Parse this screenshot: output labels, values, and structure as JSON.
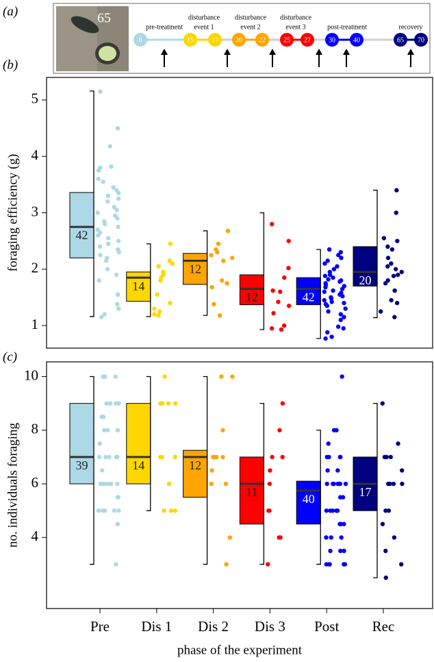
{
  "panel_labels": [
    "(a)",
    "(b)",
    "(c)"
  ],
  "timeline": {
    "photo_counter": "65",
    "nodes": [
      {
        "label": "0",
        "color": "#add8e6"
      },
      {
        "label": "15",
        "color": "#ffd700"
      },
      {
        "label": "17",
        "color": "#ffd700"
      },
      {
        "label": "20",
        "color": "#ffa500"
      },
      {
        "label": "22",
        "color": "#ffa500"
      },
      {
        "label": "25",
        "color": "#ff0000"
      },
      {
        "label": "27",
        "color": "#ff0000"
      },
      {
        "label": "30",
        "color": "#0000ff"
      },
      {
        "label": "40",
        "color": "#0000ff"
      },
      {
        "label": "65",
        "color": "#000080"
      },
      {
        "label": "70",
        "color": "#000080"
      }
    ],
    "phases": [
      {
        "lines": [
          "pre-treatment"
        ]
      },
      {
        "lines": [
          "disturbance",
          "event 1"
        ]
      },
      {
        "lines": [
          "disturbance",
          "event 2"
        ]
      },
      {
        "lines": [
          "disturbance",
          "event 3"
        ]
      },
      {
        "lines": [
          "post-treatment"
        ]
      },
      {
        "lines": [
          "recovery"
        ]
      }
    ]
  },
  "chart_data": [
    {
      "type": "box",
      "ylabel": "foraging efficiency (g)",
      "ylim": [
        0.6,
        5.4
      ],
      "yticks": [
        1,
        2,
        3,
        4,
        5
      ],
      "boxes": [
        {
          "color": "#add8e6",
          "label_color": "#222",
          "q1": 2.2,
          "median": 2.75,
          "q3": 3.36,
          "whisker_low": 1.16,
          "whisker_high": 5.16,
          "n": 42,
          "points": [
            5.15,
            4.5,
            4.18,
            3.82,
            3.8,
            3.75,
            3.6,
            3.55,
            3.45,
            3.4,
            3.3,
            3.25,
            3.2,
            3.1,
            3.05,
            3.0,
            2.95,
            2.85,
            2.8,
            2.75,
            2.7,
            2.65,
            2.6,
            2.55,
            2.5,
            2.45,
            2.4,
            2.3,
            2.25,
            2.2,
            2.15,
            2.0,
            1.9,
            1.8,
            1.55,
            1.38,
            1.3,
            1.2,
            1.15,
            2.9,
            3.35,
            2.35
          ]
        },
        {
          "color": "#ffd700",
          "label_color": "#222",
          "q1": 1.43,
          "median": 1.85,
          "q3": 1.95,
          "whisker_low": 1.16,
          "whisker_high": 2.45,
          "n": 14,
          "points": [
            2.45,
            2.15,
            2.1,
            2.05,
            1.95,
            1.9,
            1.85,
            1.8,
            1.55,
            1.4,
            1.3,
            1.25,
            1.2,
            1.18
          ]
        },
        {
          "color": "#ffa500",
          "label_color": "#222",
          "q1": 1.73,
          "median": 2.15,
          "q3": 2.28,
          "whisker_low": 1.18,
          "whisker_high": 2.68,
          "n": 12,
          "points": [
            2.68,
            2.45,
            2.35,
            2.3,
            2.25,
            2.2,
            2.15,
            1.8,
            1.75,
            1.68,
            1.38,
            1.18
          ]
        },
        {
          "color": "#ff0000",
          "label_color": "#222",
          "q1": 1.37,
          "median": 1.65,
          "q3": 1.9,
          "whisker_low": 0.93,
          "whisker_high": 3.0,
          "n": 12,
          "points": [
            2.8,
            2.5,
            2.02,
            1.85,
            1.62,
            1.6,
            1.42,
            1.35,
            1.22,
            1.0,
            0.95,
            0.93
          ]
        },
        {
          "color": "#0000ff",
          "label_color": "#fff",
          "q1": 1.37,
          "median": 1.65,
          "q3": 1.85,
          "whisker_low": 0.77,
          "whisker_high": 2.35,
          "n": 42,
          "points": [
            2.35,
            2.3,
            2.25,
            2.2,
            2.15,
            2.1,
            2.05,
            2.0,
            1.95,
            1.9,
            1.88,
            1.85,
            1.82,
            1.8,
            1.78,
            1.75,
            1.72,
            1.7,
            1.68,
            1.65,
            1.62,
            1.6,
            1.58,
            1.55,
            1.52,
            1.5,
            1.48,
            1.45,
            1.42,
            1.4,
            1.38,
            1.35,
            1.3,
            1.25,
            1.2,
            1.15,
            1.1,
            0.98,
            0.95,
            0.88,
            0.8,
            0.77
          ]
        },
        {
          "color": "#000080",
          "label_color": "#fff",
          "q1": 1.7,
          "median": 1.95,
          "q3": 2.4,
          "whisker_low": 1.14,
          "whisker_high": 3.4,
          "n": 20,
          "points": [
            3.4,
            3.0,
            2.55,
            2.5,
            2.4,
            2.35,
            2.2,
            2.1,
            2.05,
            2.0,
            1.95,
            1.9,
            1.8,
            1.75,
            1.62,
            1.45,
            1.4,
            1.25,
            1.15,
            1.88
          ]
        }
      ]
    },
    {
      "type": "box",
      "ylabel": "no. individuals foraging",
      "xlabel": "phase of the experiment",
      "categories": [
        "Pre",
        "Dis 1",
        "Dis 2",
        "Dis 3",
        "Post",
        "Rec"
      ],
      "ylim": [
        1.35,
        10.55
      ],
      "yticks": [
        4,
        6,
        8,
        10
      ],
      "boxes": [
        {
          "color": "#add8e6",
          "label_color": "#222",
          "q1": 6,
          "median": 7,
          "q3": 9,
          "whisker_low": 3,
          "whisker_high": 10,
          "n": 39,
          "points": [
            10,
            10,
            10,
            10,
            10,
            9,
            9,
            9,
            9,
            9,
            8.5,
            8.5,
            8,
            8,
            8,
            7.5,
            7,
            7,
            7,
            7,
            7,
            6.5,
            6,
            6,
            6,
            6,
            6,
            5.5,
            5.5,
            5,
            5,
            5,
            5,
            5,
            4.5,
            3,
            9,
            8,
            6
          ]
        },
        {
          "color": "#ffd700",
          "label_color": "#222",
          "q1": 6,
          "median": 7,
          "q3": 9,
          "whisker_low": 5,
          "whisker_high": 10,
          "n": 14,
          "points": [
            10,
            9,
            9,
            9,
            9,
            9,
            7,
            7,
            7,
            6,
            6,
            5,
            5,
            5
          ]
        },
        {
          "color": "#ffa500",
          "label_color": "#222",
          "q1": 5.5,
          "median": 7,
          "q3": 7.25,
          "whisker_low": 3,
          "whisker_high": 10,
          "n": 12,
          "points": [
            10,
            10,
            8,
            7,
            7,
            7,
            7,
            6.5,
            6,
            6,
            4,
            3
          ]
        },
        {
          "color": "#ff0000",
          "label_color": "#222",
          "q1": 4.5,
          "median": 6,
          "q3": 7,
          "whisker_low": 3,
          "whisker_high": 9,
          "n": 11,
          "points": [
            9,
            8,
            7,
            7,
            6.5,
            6,
            5,
            5,
            4,
            4,
            3
          ]
        },
        {
          "color": "#0000ff",
          "label_color": "#fff",
          "q1": 4.5,
          "median": 5.75,
          "q3": 6.1,
          "whisker_low": 3,
          "whisker_high": 8,
          "n": 40,
          "points": [
            10,
            8,
            8,
            7.5,
            7,
            7,
            7,
            7,
            6.5,
            6.5,
            6,
            6,
            6,
            6,
            6,
            6,
            6,
            5.5,
            5.5,
            5,
            5,
            5,
            5,
            5,
            4.5,
            4.5,
            4.5,
            4,
            4,
            4,
            3.5,
            3.5,
            3.5,
            3,
            3,
            3,
            3,
            3,
            6,
            5
          ]
        },
        {
          "color": "#000080",
          "label_color": "#fff",
          "q1": 5,
          "median": 6,
          "q3": 7,
          "whisker_low": 2.5,
          "whisker_high": 9,
          "n": 17,
          "points": [
            9,
            7.5,
            7,
            7,
            7,
            6.5,
            6,
            6,
            6,
            5,
            5,
            4.5,
            4,
            3.5,
            3,
            2.5,
            6
          ]
        }
      ]
    }
  ]
}
